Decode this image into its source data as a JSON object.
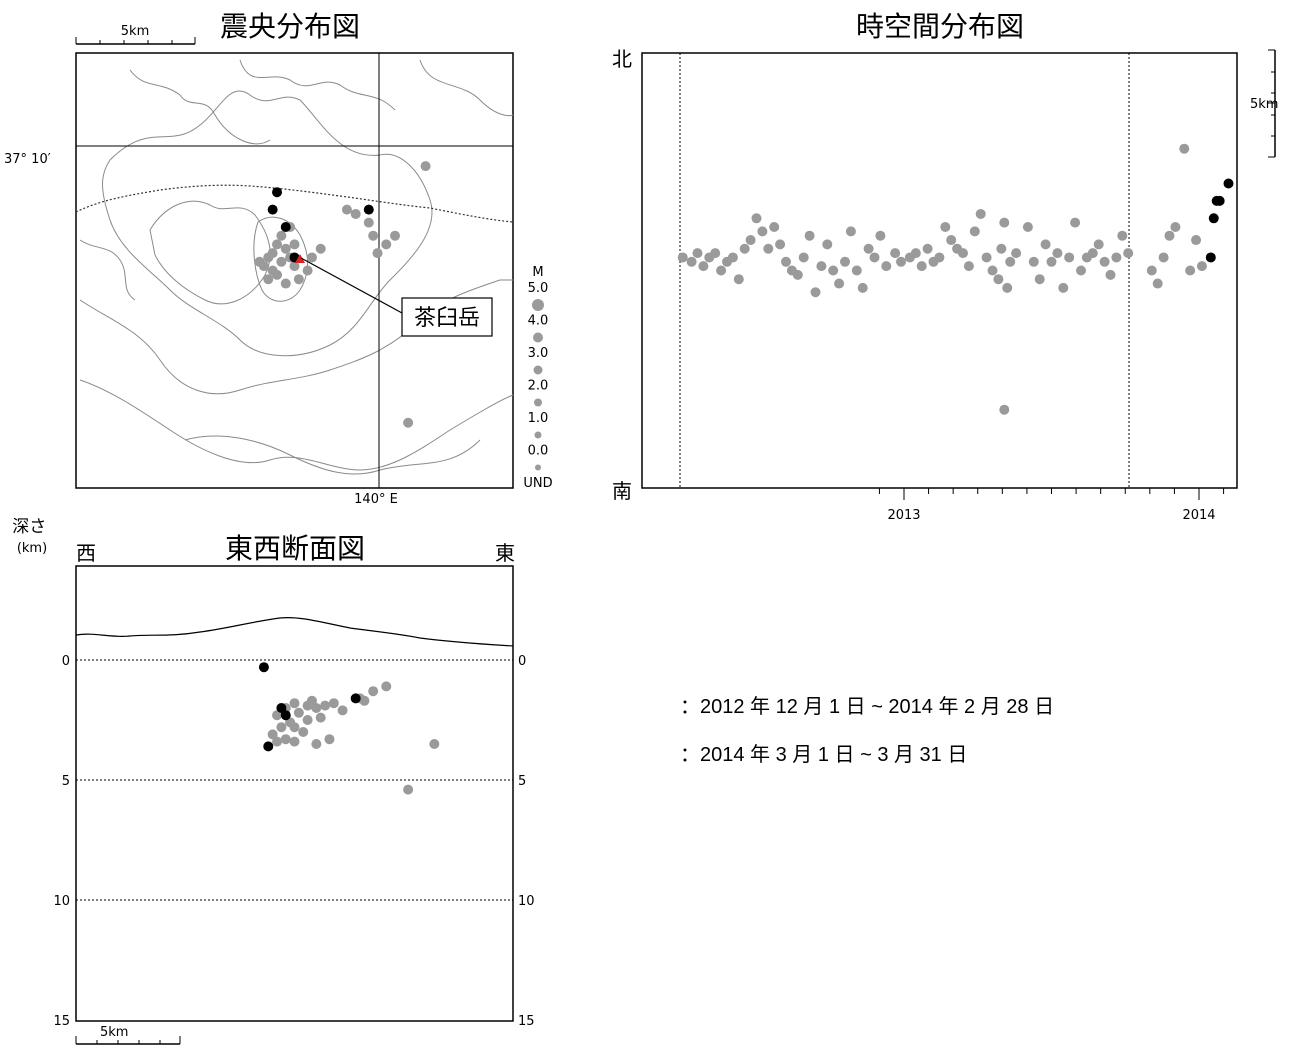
{
  "colors": {
    "previous": "#9a9a9a",
    "current": "#000000",
    "volcano": "#e02020",
    "coast": "#8a8a8a"
  },
  "legend": {
    "previous_label": "：2012 年 12 月 1 日 ~ 2014 年 2 月 28 日",
    "current_label": "：2014 年 3 月 1 日 ~ 3 月 31 日"
  },
  "chart_data": [
    {
      "type": "scatter",
      "title": "震央分布図",
      "scale_bar_label": "5km",
      "lat_label": "37° 10′",
      "lon_label": "140° E",
      "volcano_label": "茶臼岳",
      "magnitude_legend": {
        "title": "M",
        "labels": [
          "5.0",
          "4.0",
          "3.0",
          "2.0",
          "1.0",
          "0.0",
          "UND"
        ]
      },
      "series": [
        {
          "name": "2012/12/01-2014/02/28",
          "points": [
            [
              4.9,
              6.0
            ],
            [
              4.7,
              5.8
            ],
            [
              4.8,
              5.5
            ],
            [
              4.5,
              5.4
            ],
            [
              4.6,
              5.6
            ],
            [
              4.4,
              5.3
            ],
            [
              4.3,
              5.1
            ],
            [
              4.5,
              5.0
            ],
            [
              4.7,
              5.2
            ],
            [
              4.9,
              5.3
            ],
            [
              5.0,
              5.1
            ],
            [
              4.6,
              4.9
            ],
            [
              4.8,
              4.7
            ],
            [
              5.1,
              4.8
            ],
            [
              5.3,
              5.0
            ],
            [
              4.2,
              5.2
            ],
            [
              4.4,
              4.8
            ],
            [
              5.0,
              5.6
            ],
            [
              5.4,
              5.3
            ],
            [
              5.6,
              5.5
            ],
            [
              6.2,
              6.4
            ],
            [
              6.4,
              6.3
            ],
            [
              6.7,
              6.1
            ],
            [
              6.8,
              5.8
            ],
            [
              7.1,
              5.6
            ],
            [
              7.3,
              5.8
            ],
            [
              6.9,
              5.4
            ],
            [
              8.0,
              7.4
            ],
            [
              7.6,
              1.5
            ]
          ]
        },
        {
          "name": "2014/03/01-2014/03/31",
          "points": [
            [
              4.6,
              6.8
            ],
            [
              4.5,
              6.4
            ],
            [
              4.8,
              6.0
            ],
            [
              5.0,
              5.3
            ],
            [
              6.7,
              6.4
            ]
          ]
        }
      ]
    },
    {
      "type": "scatter",
      "title": "時空間分布図",
      "y_top_label": "北",
      "y_bottom_label": "南",
      "scale_bar_label": "5km",
      "x_tick_labels": [
        "2013",
        "2014"
      ],
      "series": [
        {
          "name": "2012/12/01-2014/02/28",
          "points": [
            [
              -0.75,
              5.3
            ],
            [
              -0.72,
              5.2
            ],
            [
              -0.7,
              5.4
            ],
            [
              -0.68,
              5.1
            ],
            [
              -0.66,
              5.3
            ],
            [
              -0.64,
              5.4
            ],
            [
              -0.62,
              5.0
            ],
            [
              -0.6,
              5.2
            ],
            [
              -0.58,
              5.3
            ],
            [
              -0.56,
              4.8
            ],
            [
              -0.54,
              5.5
            ],
            [
              -0.52,
              5.7
            ],
            [
              -0.5,
              6.2
            ],
            [
              -0.48,
              5.9
            ],
            [
              -0.46,
              5.5
            ],
            [
              -0.44,
              6.0
            ],
            [
              -0.42,
              5.6
            ],
            [
              -0.4,
              5.2
            ],
            [
              -0.38,
              5.0
            ],
            [
              -0.36,
              4.9
            ],
            [
              -0.34,
              5.3
            ],
            [
              -0.32,
              5.8
            ],
            [
              -0.3,
              4.5
            ],
            [
              -0.28,
              5.1
            ],
            [
              -0.26,
              5.6
            ],
            [
              -0.24,
              5.0
            ],
            [
              -0.22,
              4.7
            ],
            [
              -0.2,
              5.2
            ],
            [
              -0.18,
              5.9
            ],
            [
              -0.16,
              5.0
            ],
            [
              -0.14,
              4.6
            ],
            [
              -0.12,
              5.5
            ],
            [
              -0.1,
              5.3
            ],
            [
              -0.08,
              5.8
            ],
            [
              -0.06,
              5.1
            ],
            [
              -0.03,
              5.4
            ],
            [
              -0.01,
              5.2
            ],
            [
              0.02,
              5.3
            ],
            [
              0.04,
              5.4
            ],
            [
              0.06,
              5.1
            ],
            [
              0.08,
              5.5
            ],
            [
              0.1,
              5.2
            ],
            [
              0.12,
              5.3
            ],
            [
              0.14,
              6.0
            ],
            [
              0.16,
              5.7
            ],
            [
              0.18,
              5.5
            ],
            [
              0.2,
              5.4
            ],
            [
              0.22,
              5.1
            ],
            [
              0.24,
              5.9
            ],
            [
              0.26,
              6.3
            ],
            [
              0.28,
              5.3
            ],
            [
              0.3,
              5.0
            ],
            [
              0.32,
              4.8
            ],
            [
              0.33,
              5.5
            ],
            [
              0.34,
              6.1
            ],
            [
              0.35,
              4.6
            ],
            [
              0.36,
              5.2
            ],
            [
              0.38,
              5.4
            ],
            [
              0.42,
              6.0
            ],
            [
              0.44,
              5.2
            ],
            [
              0.46,
              4.8
            ],
            [
              0.48,
              5.6
            ],
            [
              0.5,
              5.2
            ],
            [
              0.52,
              5.4
            ],
            [
              0.54,
              4.6
            ],
            [
              0.56,
              5.3
            ],
            [
              0.58,
              6.1
            ],
            [
              0.6,
              5.0
            ],
            [
              0.62,
              5.3
            ],
            [
              0.64,
              5.4
            ],
            [
              0.66,
              5.6
            ],
            [
              0.68,
              5.2
            ],
            [
              0.7,
              4.9
            ],
            [
              0.72,
              5.3
            ],
            [
              0.74,
              5.8
            ],
            [
              0.76,
              5.4
            ],
            [
              0.84,
              5.0
            ],
            [
              0.86,
              4.7
            ],
            [
              0.88,
              5.3
            ],
            [
              0.9,
              5.8
            ],
            [
              0.92,
              6.0
            ],
            [
              0.95,
              7.8
            ],
            [
              0.97,
              5.0
            ],
            [
              0.99,
              5.7
            ],
            [
              1.01,
              5.1
            ],
            [
              0.34,
              1.8
            ]
          ]
        },
        {
          "name": "2014/03/01-2014/03/31",
          "points": [
            [
              1.04,
              5.3
            ],
            [
              1.05,
              6.2
            ],
            [
              1.06,
              6.6
            ],
            [
              1.07,
              6.6
            ],
            [
              1.1,
              7.0
            ]
          ]
        }
      ]
    },
    {
      "type": "scatter",
      "title": "東西断面図",
      "ylabel": "深さ\n(km)",
      "west_label": "西",
      "east_label": "東",
      "y_tick_labels": [
        "0",
        "5",
        "10",
        "15"
      ],
      "ylim": [
        15,
        -3
      ],
      "scale_bar_label": "5km",
      "series": [
        {
          "name": "2012/12/01-2014/02/28",
          "points": [
            [
              4.8,
              2.0
            ],
            [
              4.6,
              2.3
            ],
            [
              4.9,
              2.6
            ],
            [
              5.1,
              2.2
            ],
            [
              5.0,
              1.8
            ],
            [
              4.7,
              2.8
            ],
            [
              5.2,
              3.0
            ],
            [
              4.5,
              3.1
            ],
            [
              4.8,
              3.3
            ],
            [
              5.3,
              2.5
            ],
            [
              5.5,
              2.0
            ],
            [
              5.7,
              1.9
            ],
            [
              5.9,
              1.8
            ],
            [
              6.1,
              2.1
            ],
            [
              5.4,
              1.7
            ],
            [
              5.6,
              2.4
            ],
            [
              5.8,
              3.3
            ],
            [
              5.0,
              3.4
            ],
            [
              4.6,
              3.4
            ],
            [
              6.5,
              1.6
            ],
            [
              6.8,
              1.3
            ],
            [
              7.1,
              1.1
            ],
            [
              6.6,
              1.7
            ],
            [
              8.2,
              3.5
            ],
            [
              7.6,
              5.4
            ],
            [
              5.3,
              1.9
            ],
            [
              5.0,
              2.8
            ],
            [
              5.5,
              3.5
            ]
          ]
        },
        {
          "name": "2014/03/01-2014/03/31",
          "points": [
            [
              4.3,
              0.3
            ],
            [
              4.7,
              2.0
            ],
            [
              4.8,
              2.3
            ],
            [
              4.4,
              3.6
            ],
            [
              6.4,
              1.6
            ]
          ]
        }
      ]
    }
  ]
}
